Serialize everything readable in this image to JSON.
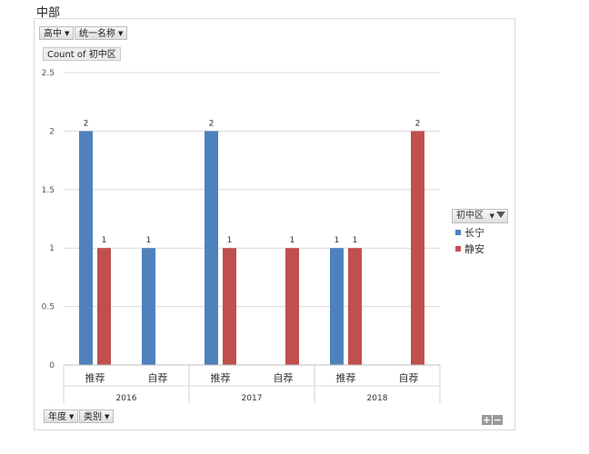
{
  "sheet_title": "中部",
  "filters": [
    {
      "label": "高中"
    },
    {
      "label": "统一名称"
    }
  ],
  "value_field": "Count of  初中区",
  "legend": {
    "field": "初中区",
    "items": [
      {
        "name": "长宁",
        "color": "#4f81bd"
      },
      {
        "name": "静安",
        "color": "#c0504d"
      }
    ]
  },
  "axis_fields": [
    {
      "label": "年度"
    },
    {
      "label": "类别"
    }
  ],
  "zoom": {
    "plus": "+",
    "minus": "−"
  },
  "chart_data": {
    "type": "bar",
    "ylim": [
      0,
      2.5
    ],
    "yticks": [
      "0",
      "0.5",
      "1",
      "1.5",
      "2",
      "2.5"
    ],
    "groups": [
      {
        "year": "2016",
        "categories": [
          "推荐",
          "自荐"
        ]
      },
      {
        "year": "2017",
        "categories": [
          "推荐",
          "自荐"
        ]
      },
      {
        "year": "2018",
        "categories": [
          "推荐",
          "自荐"
        ]
      }
    ],
    "series": [
      {
        "name": "长宁",
        "values": [
          2,
          1,
          2,
          null,
          1,
          null
        ]
      },
      {
        "name": "静安",
        "values": [
          1,
          null,
          1,
          1,
          1,
          2
        ]
      }
    ]
  }
}
